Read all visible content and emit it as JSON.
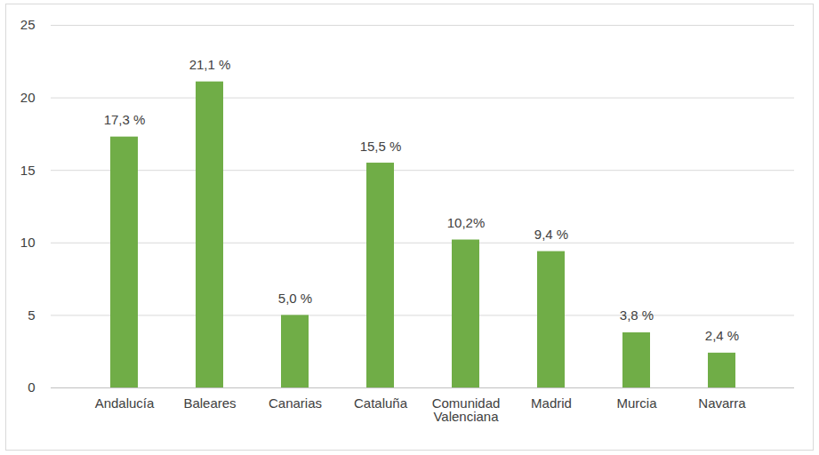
{
  "chart_data": {
    "type": "bar",
    "categories": [
      "Andalucía",
      "Baleares",
      "Canarias",
      "Cataluña",
      "Comunidad Valenciana",
      "Madrid",
      "Murcia",
      "Navarra"
    ],
    "values": [
      17.3,
      21.1,
      5.0,
      15.5,
      10.2,
      9.4,
      3.8,
      2.4
    ],
    "value_labels": [
      "17,3 %",
      "21,1 %",
      "5,0 %",
      "15,5 %",
      "10,2%",
      "9,4 %",
      "3,8 %",
      "2,4 %"
    ],
    "color": "#70ad47",
    "ylim": [
      0,
      25
    ],
    "yticks": [
      0,
      5,
      10,
      15,
      20,
      25
    ],
    "grid": true,
    "data_labels": true
  }
}
